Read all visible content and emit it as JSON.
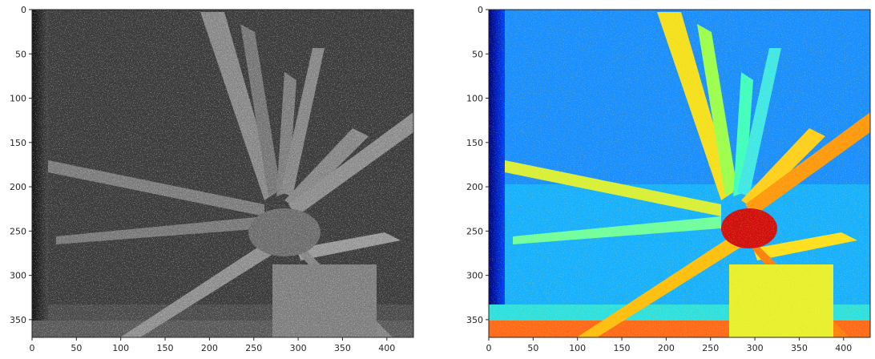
{
  "figure": {
    "panels": [
      {
        "id": "gray",
        "colormap": "gray",
        "x_ticks": [
          "0",
          "50",
          "100",
          "150",
          "200",
          "250",
          "300",
          "350",
          "400"
        ],
        "y_ticks": [
          "0",
          "50",
          "100",
          "150",
          "200",
          "250",
          "300",
          "350"
        ],
        "x_range": [
          0,
          430
        ],
        "y_range": [
          0,
          370
        ]
      },
      {
        "id": "jet",
        "colormap": "jet",
        "x_ticks": [
          "0",
          "50",
          "100",
          "150",
          "200",
          "250",
          "300",
          "350",
          "400"
        ],
        "y_ticks": [
          "0",
          "50",
          "100",
          "150",
          "200",
          "250",
          "300",
          "350"
        ],
        "x_range": [
          0,
          430
        ],
        "y_range": [
          0,
          370
        ]
      }
    ]
  }
}
